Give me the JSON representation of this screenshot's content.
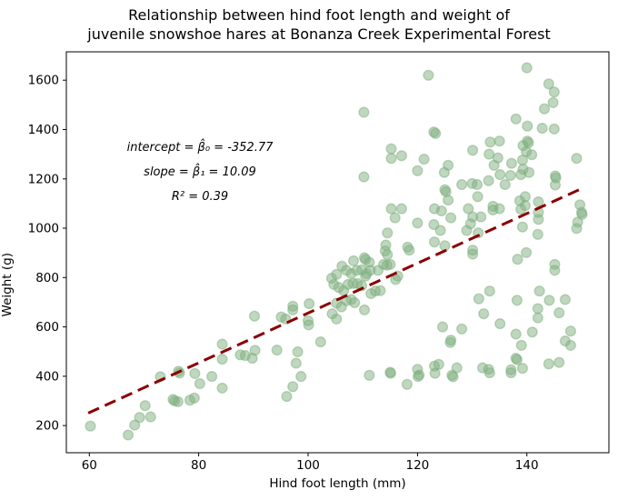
{
  "title": {
    "line1": "Relationship between hind foot length and weight of",
    "line2": "juvenile snowshoe hares at Bonanza Creek Experimental Forest"
  },
  "chart_data": {
    "type": "scatter",
    "xlabel": "Hind foot length (mm)",
    "ylabel": "Weight (g)",
    "xlim": [
      55.8,
      155.0
    ],
    "ylim": [
      90,
      1715
    ],
    "x_ticks": [
      60,
      80,
      100,
      120,
      140
    ],
    "y_ticks": [
      200,
      400,
      600,
      800,
      1000,
      1200,
      1400,
      1600
    ],
    "grid": false,
    "legend": "none",
    "marker_color": "#7faf7f",
    "marker_alpha": 0.5,
    "line_color": "#8b0000",
    "line_style": "dashed",
    "annotation": {
      "lines": [
        "intercept = β̂₀ = -352.77",
        "slope = β̂₁ = 10.09",
        "R² = 0.39"
      ]
    },
    "regression": {
      "intercept": -352.77,
      "slope": 10.09,
      "r_squared": 0.39,
      "x_start": 59.8,
      "x_end": 150.5
    },
    "points": [
      [
        122.0,
        1620
      ],
      [
        110.2,
        1470
      ],
      [
        123.0,
        1390
      ],
      [
        123.3,
        1384
      ],
      [
        115.2,
        1322
      ],
      [
        117.1,
        1294
      ],
      [
        115.2,
        1283
      ],
      [
        121.2,
        1280
      ],
      [
        120.0,
        1233
      ],
      [
        110.2,
        1208
      ],
      [
        124.9,
        1226
      ],
      [
        125.0,
        1156
      ],
      [
        125.2,
        1148
      ],
      [
        115.2,
        1079
      ],
      [
        117.1,
        1079
      ],
      [
        115.9,
        1042
      ],
      [
        120.0,
        1021
      ],
      [
        123.1,
        1079
      ],
      [
        124.4,
        1070
      ],
      [
        123.0,
        1015
      ],
      [
        124.2,
        991
      ],
      [
        114.5,
        981
      ],
      [
        114.2,
        932
      ],
      [
        118.2,
        923
      ],
      [
        123.1,
        944
      ],
      [
        125.0,
        929
      ],
      [
        114.1,
        908
      ],
      [
        118.5,
        911
      ],
      [
        140.0,
        1650
      ],
      [
        144.0,
        1585
      ],
      [
        145.0,
        1552
      ],
      [
        144.8,
        1509
      ],
      [
        143.2,
        1484
      ],
      [
        138.0,
        1443
      ],
      [
        140.1,
        1414
      ],
      [
        142.8,
        1405
      ],
      [
        145.0,
        1402
      ],
      [
        140.1,
        1353
      ],
      [
        140.3,
        1346
      ],
      [
        133.3,
        1349
      ],
      [
        135.0,
        1353
      ],
      [
        130.1,
        1316
      ],
      [
        133.1,
        1300
      ],
      [
        139.3,
        1335
      ],
      [
        139.9,
        1310
      ],
      [
        140.9,
        1298
      ],
      [
        134.7,
        1285
      ],
      [
        134.0,
        1255
      ],
      [
        137.2,
        1263
      ],
      [
        139.2,
        1276
      ],
      [
        139.3,
        1239
      ],
      [
        140.4,
        1226
      ],
      [
        149.1,
        1283
      ],
      [
        137.0,
        1214
      ],
      [
        138.9,
        1217
      ],
      [
        135.1,
        1217
      ],
      [
        125.6,
        1255
      ],
      [
        128.1,
        1177
      ],
      [
        130.0,
        1181
      ],
      [
        130.9,
        1177
      ],
      [
        133.0,
        1193
      ],
      [
        136.0,
        1177
      ],
      [
        145.2,
        1212
      ],
      [
        145.3,
        1204
      ],
      [
        145.2,
        1175
      ],
      [
        131.0,
        1128
      ],
      [
        139.7,
        1128
      ],
      [
        138.7,
        1111
      ],
      [
        139.7,
        1092
      ],
      [
        125.6,
        1114
      ],
      [
        126.1,
        1042
      ],
      [
        129.3,
        1079
      ],
      [
        130.1,
        1046
      ],
      [
        133.8,
        1089
      ],
      [
        133.8,
        1074
      ],
      [
        135.0,
        1079
      ],
      [
        138.9,
        1077
      ],
      [
        142.1,
        1107
      ],
      [
        142.1,
        1064
      ],
      [
        142.1,
        1036
      ],
      [
        149.7,
        1095
      ],
      [
        150.0,
        1064
      ],
      [
        150.1,
        1056
      ],
      [
        149.3,
        1025
      ],
      [
        149.1,
        999
      ],
      [
        139.2,
        1005
      ],
      [
        131.6,
        1046
      ],
      [
        129.7,
        1018
      ],
      [
        129.0,
        991
      ],
      [
        131.1,
        981
      ],
      [
        142.0,
        975
      ],
      [
        130.1,
        911
      ],
      [
        90.2,
        644
      ],
      [
        84.3,
        530
      ],
      [
        90.3,
        505
      ],
      [
        87.6,
        487
      ],
      [
        88.5,
        484
      ],
      [
        84.3,
        469
      ],
      [
        89.8,
        473
      ],
      [
        76.3,
        420
      ],
      [
        76.5,
        413
      ],
      [
        73.0,
        398
      ],
      [
        79.3,
        411
      ],
      [
        80.2,
        370
      ],
      [
        82.4,
        399
      ],
      [
        84.3,
        352
      ],
      [
        75.3,
        306
      ],
      [
        75.6,
        300
      ],
      [
        76.2,
        297
      ],
      [
        78.4,
        303
      ],
      [
        79.2,
        312
      ],
      [
        70.2,
        281
      ],
      [
        69.2,
        233
      ],
      [
        71.2,
        235
      ],
      [
        68.3,
        202
      ],
      [
        60.2,
        198
      ],
      [
        67.1,
        162
      ],
      [
        108.3,
        868
      ],
      [
        110.3,
        880
      ],
      [
        110.5,
        873
      ],
      [
        111.2,
        862
      ],
      [
        114.5,
        893
      ],
      [
        114.4,
        850
      ],
      [
        115.0,
        853
      ],
      [
        104.3,
        797
      ],
      [
        105.2,
        813
      ],
      [
        106.2,
        846
      ],
      [
        107.0,
        829
      ],
      [
        107.9,
        816
      ],
      [
        108.9,
        829
      ],
      [
        109.8,
        831
      ],
      [
        110.7,
        816
      ],
      [
        111.4,
        829
      ],
      [
        112.8,
        829
      ],
      [
        113.8,
        853
      ],
      [
        116.0,
        792
      ],
      [
        116.4,
        806
      ],
      [
        104.7,
        772
      ],
      [
        105.6,
        760
      ],
      [
        106.5,
        747
      ],
      [
        107.3,
        772
      ],
      [
        108.2,
        776
      ],
      [
        109.0,
        776
      ],
      [
        109.8,
        767
      ],
      [
        110.5,
        806
      ],
      [
        111.5,
        735
      ],
      [
        112.3,
        745
      ],
      [
        113.2,
        747
      ],
      [
        105.2,
        696
      ],
      [
        106.1,
        681
      ],
      [
        107.0,
        706
      ],
      [
        107.9,
        711
      ],
      [
        108.5,
        698
      ],
      [
        104.4,
        653
      ],
      [
        105.2,
        632
      ],
      [
        110.3,
        669
      ],
      [
        100.2,
        694
      ],
      [
        100.0,
        625
      ],
      [
        100.1,
        608
      ],
      [
        97.2,
        684
      ],
      [
        97.2,
        669
      ],
      [
        95.1,
        640
      ],
      [
        95.9,
        632
      ],
      [
        94.3,
        506
      ],
      [
        98.1,
        499
      ],
      [
        102.3,
        539
      ],
      [
        97.8,
        453
      ],
      [
        98.7,
        399
      ],
      [
        97.2,
        358
      ],
      [
        96.1,
        318
      ],
      [
        111.2,
        404
      ],
      [
        115.0,
        416
      ],
      [
        118.1,
        367
      ],
      [
        120.0,
        428
      ],
      [
        120.1,
        399
      ],
      [
        123.1,
        441
      ],
      [
        123.9,
        448
      ],
      [
        124.6,
        600
      ],
      [
        115.1,
        412
      ],
      [
        120.3,
        405
      ],
      [
        123.2,
        412
      ],
      [
        130.1,
        895
      ],
      [
        138.3,
        874
      ],
      [
        139.9,
        901
      ],
      [
        145.1,
        853
      ],
      [
        145.1,
        829
      ],
      [
        133.2,
        745
      ],
      [
        131.2,
        714
      ],
      [
        142.3,
        745
      ],
      [
        138.2,
        708
      ],
      [
        144.1,
        708
      ],
      [
        147.0,
        711
      ],
      [
        142.0,
        674
      ],
      [
        132.1,
        653
      ],
      [
        142.0,
        637
      ],
      [
        145.9,
        657
      ],
      [
        135.1,
        613
      ],
      [
        128.1,
        592
      ],
      [
        138.0,
        571
      ],
      [
        141.0,
        579
      ],
      [
        126.1,
        546
      ],
      [
        126.0,
        537
      ],
      [
        148.0,
        583
      ],
      [
        139.0,
        525
      ],
      [
        147.0,
        543
      ],
      [
        148.0,
        525
      ],
      [
        138.0,
        473
      ],
      [
        138.2,
        467
      ],
      [
        127.2,
        434
      ],
      [
        126.3,
        404
      ],
      [
        126.5,
        398
      ],
      [
        131.9,
        434
      ],
      [
        133.0,
        428
      ],
      [
        137.1,
        426
      ],
      [
        139.2,
        432
      ],
      [
        144.0,
        450
      ],
      [
        145.9,
        456
      ],
      [
        133.2,
        414
      ],
      [
        137.1,
        414
      ]
    ]
  }
}
